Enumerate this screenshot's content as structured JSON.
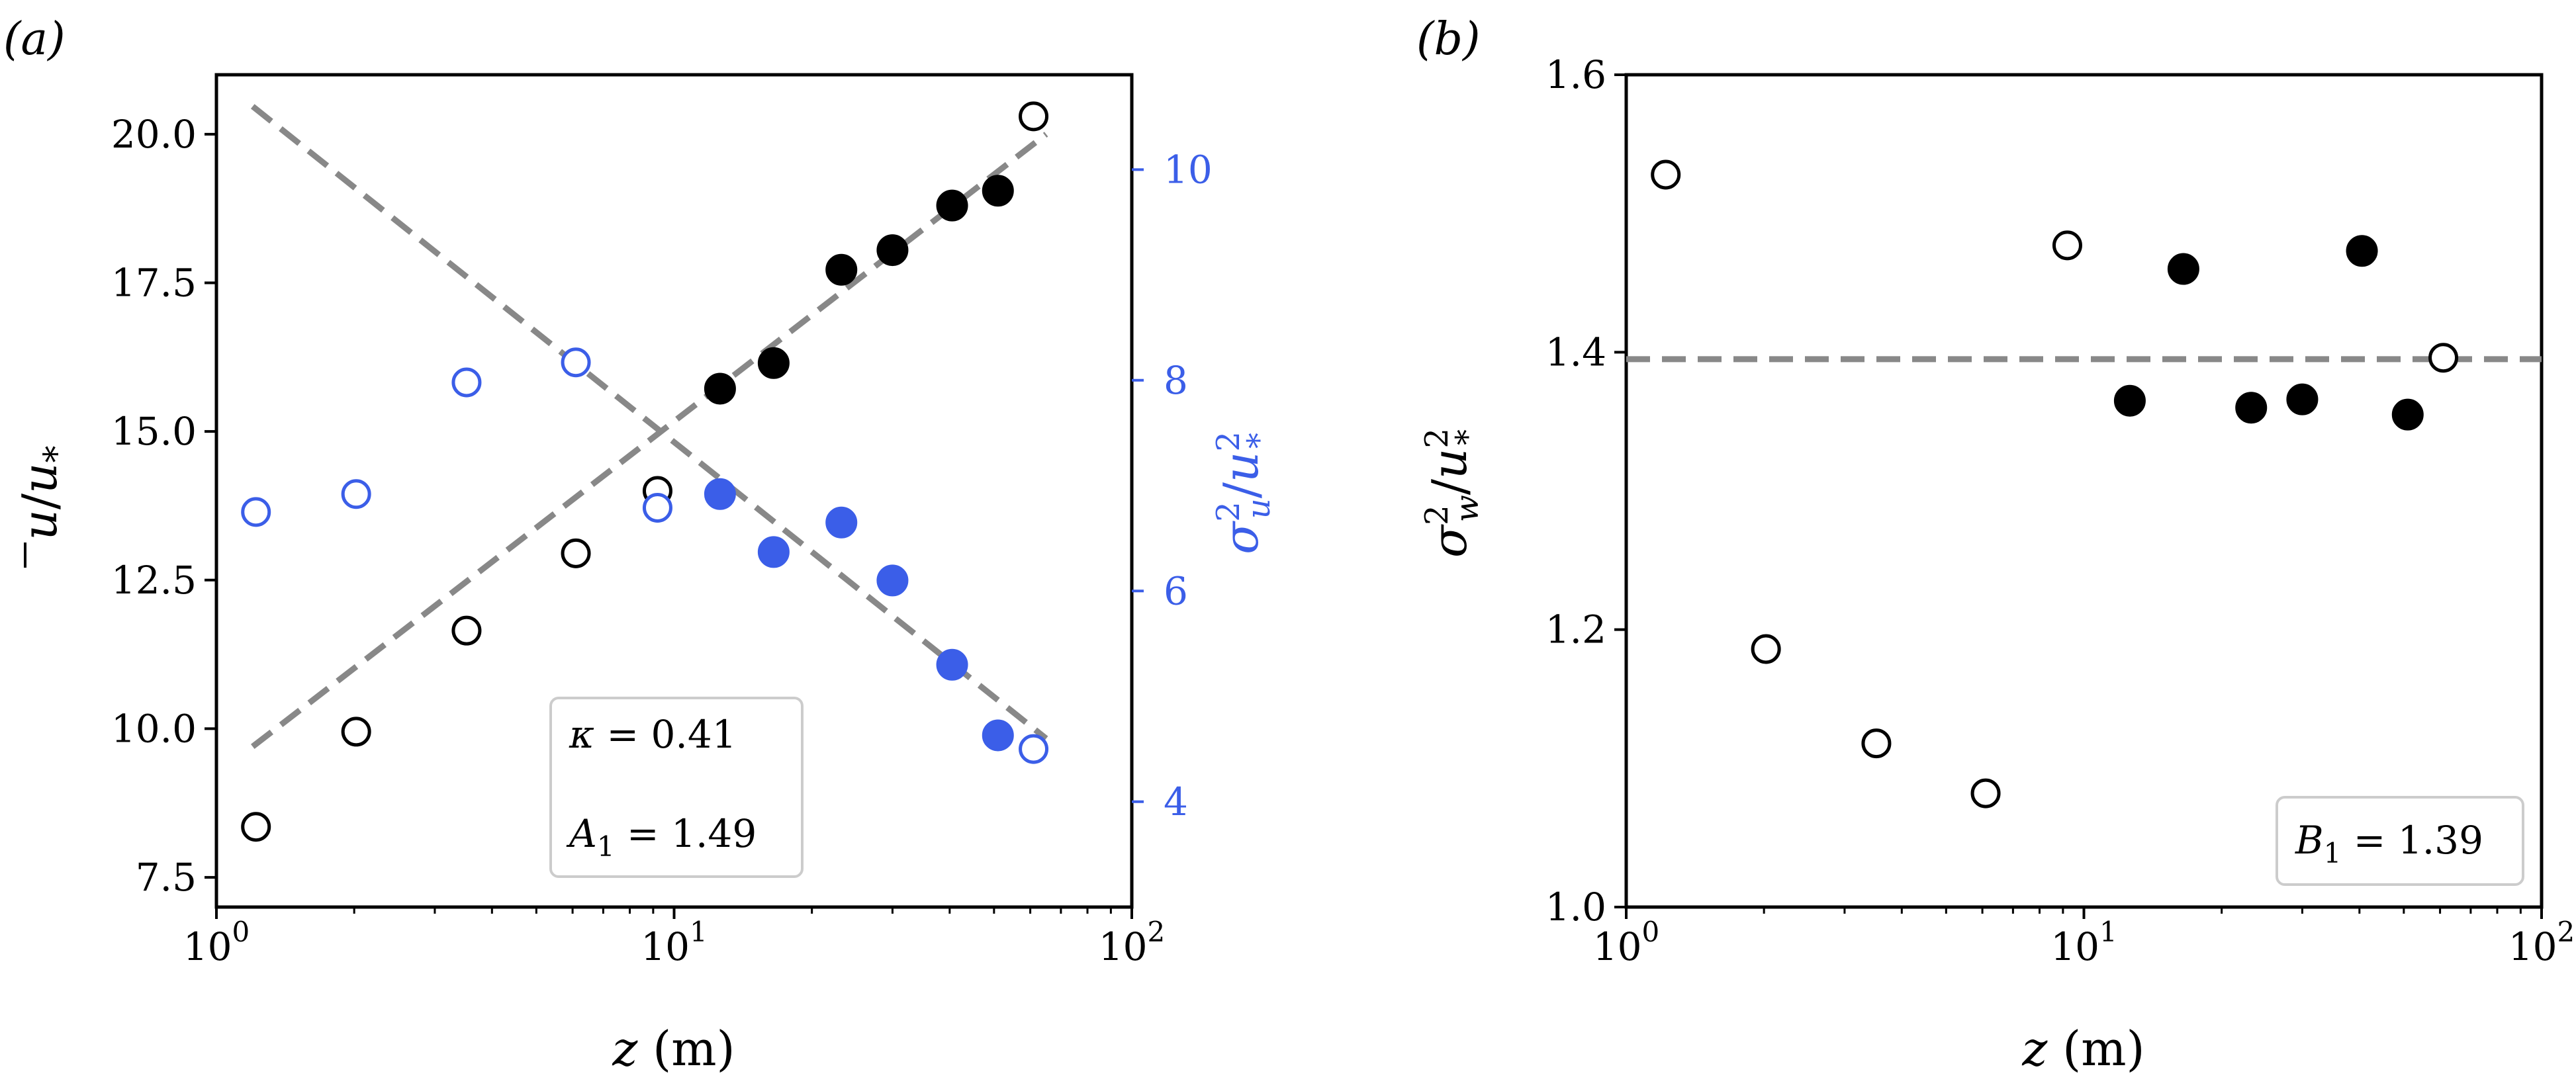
{
  "figure": {
    "panel_a_label": "(a)",
    "panel_b_label": "(b)"
  },
  "chart_data": [
    {
      "type": "scatter",
      "panel": "(a)",
      "xscale": "log",
      "xlim": [
        1,
        100
      ],
      "xticks": [
        {
          "value": 1,
          "base": "10",
          "exp": "0"
        },
        {
          "value": 10,
          "base": "10",
          "exp": "1"
        },
        {
          "value": 100,
          "base": "10",
          "exp": "2"
        }
      ],
      "xlabel": {
        "var": "z",
        "unit": " (m)"
      },
      "ylabel_left": {
        "text": "ū/u*"
      },
      "ylabel_right": {
        "text": "σu²/u*²",
        "color": "#3b5ee8"
      },
      "ylim_left": [
        7,
        21
      ],
      "yticks_left": [
        7.5,
        10.0,
        12.5,
        15.0,
        17.5,
        20.0
      ],
      "ylim_right": [
        3.0,
        10.9
      ],
      "yticks_right": [
        4,
        6,
        8,
        10
      ],
      "colors": {
        "black": "#000000",
        "blue": "#3b5ee8",
        "fit": "#888888"
      },
      "series": [
        {
          "axis": "left",
          "color": "#000000",
          "marker": "open",
          "points": [
            [
              1.22,
              8.35
            ],
            [
              2.02,
              9.95
            ],
            [
              3.52,
              11.65
            ],
            [
              6.1,
              12.95
            ],
            [
              9.2,
              14.0
            ],
            [
              61.0,
              20.3
            ]
          ]
        },
        {
          "axis": "left",
          "color": "#000000",
          "marker": "filled",
          "points": [
            [
              12.6,
              15.72
            ],
            [
              16.5,
              16.15
            ],
            [
              23.2,
              17.72
            ],
            [
              30.0,
              18.05
            ],
            [
              40.5,
              18.8
            ],
            [
              51.0,
              19.05
            ]
          ]
        },
        {
          "axis": "right",
          "color": "#3b5ee8",
          "marker": "open",
          "points": [
            [
              1.22,
              6.75
            ],
            [
              2.02,
              6.92
            ],
            [
              3.52,
              7.98
            ],
            [
              6.1,
              8.17
            ],
            [
              9.2,
              6.79
            ],
            [
              61.0,
              4.5
            ]
          ]
        },
        {
          "axis": "right",
          "color": "#3b5ee8",
          "marker": "filled",
          "points": [
            [
              12.6,
              6.92
            ],
            [
              16.5,
              6.37
            ],
            [
              23.2,
              6.65
            ],
            [
              30.0,
              6.1
            ],
            [
              40.5,
              5.3
            ],
            [
              51.0,
              4.63
            ]
          ]
        }
      ],
      "fit_lines": [
        {
          "axis": "left",
          "x": [
            1.2,
            65
          ],
          "y": [
            9.7,
            20.0
          ]
        },
        {
          "axis": "right",
          "x": [
            1.2,
            65
          ],
          "y": [
            10.6,
            4.6
          ]
        }
      ],
      "annotation": {
        "kappa": "κ = 0.41",
        "A1_label": "A",
        "A1_sub": "1",
        "A1_value": " = 1.49"
      }
    },
    {
      "type": "scatter",
      "panel": "(b)",
      "xscale": "log",
      "xlim": [
        1,
        100
      ],
      "xticks": [
        {
          "value": 1,
          "base": "10",
          "exp": "0"
        },
        {
          "value": 10,
          "base": "10",
          "exp": "1"
        },
        {
          "value": 100,
          "base": "10",
          "exp": "2"
        }
      ],
      "xlabel": {
        "var": "z",
        "unit": " (m)"
      },
      "ylabel": {
        "text": "σw²/u*²"
      },
      "ylim": [
        1.0,
        1.6
      ],
      "yticks": [
        1.0,
        1.2,
        1.4,
        1.6
      ],
      "series": [
        {
          "color": "#000000",
          "marker": "open",
          "points": [
            [
              1.22,
              1.528
            ],
            [
              2.02,
              1.186
            ],
            [
              3.52,
              1.118
            ],
            [
              6.1,
              1.082
            ],
            [
              9.2,
              1.477
            ],
            [
              61.0,
              1.396
            ]
          ]
        },
        {
          "color": "#000000",
          "marker": "filled",
          "points": [
            [
              12.6,
              1.365
            ],
            [
              16.5,
              1.46
            ],
            [
              23.2,
              1.36
            ],
            [
              30.0,
              1.366
            ],
            [
              40.5,
              1.473
            ],
            [
              51.0,
              1.355
            ]
          ]
        }
      ],
      "hline": {
        "y": 1.395,
        "color": "#888888"
      },
      "annotation": {
        "B1_label": "B",
        "B1_sub": "1",
        "B1_value": " = 1.39"
      }
    }
  ]
}
